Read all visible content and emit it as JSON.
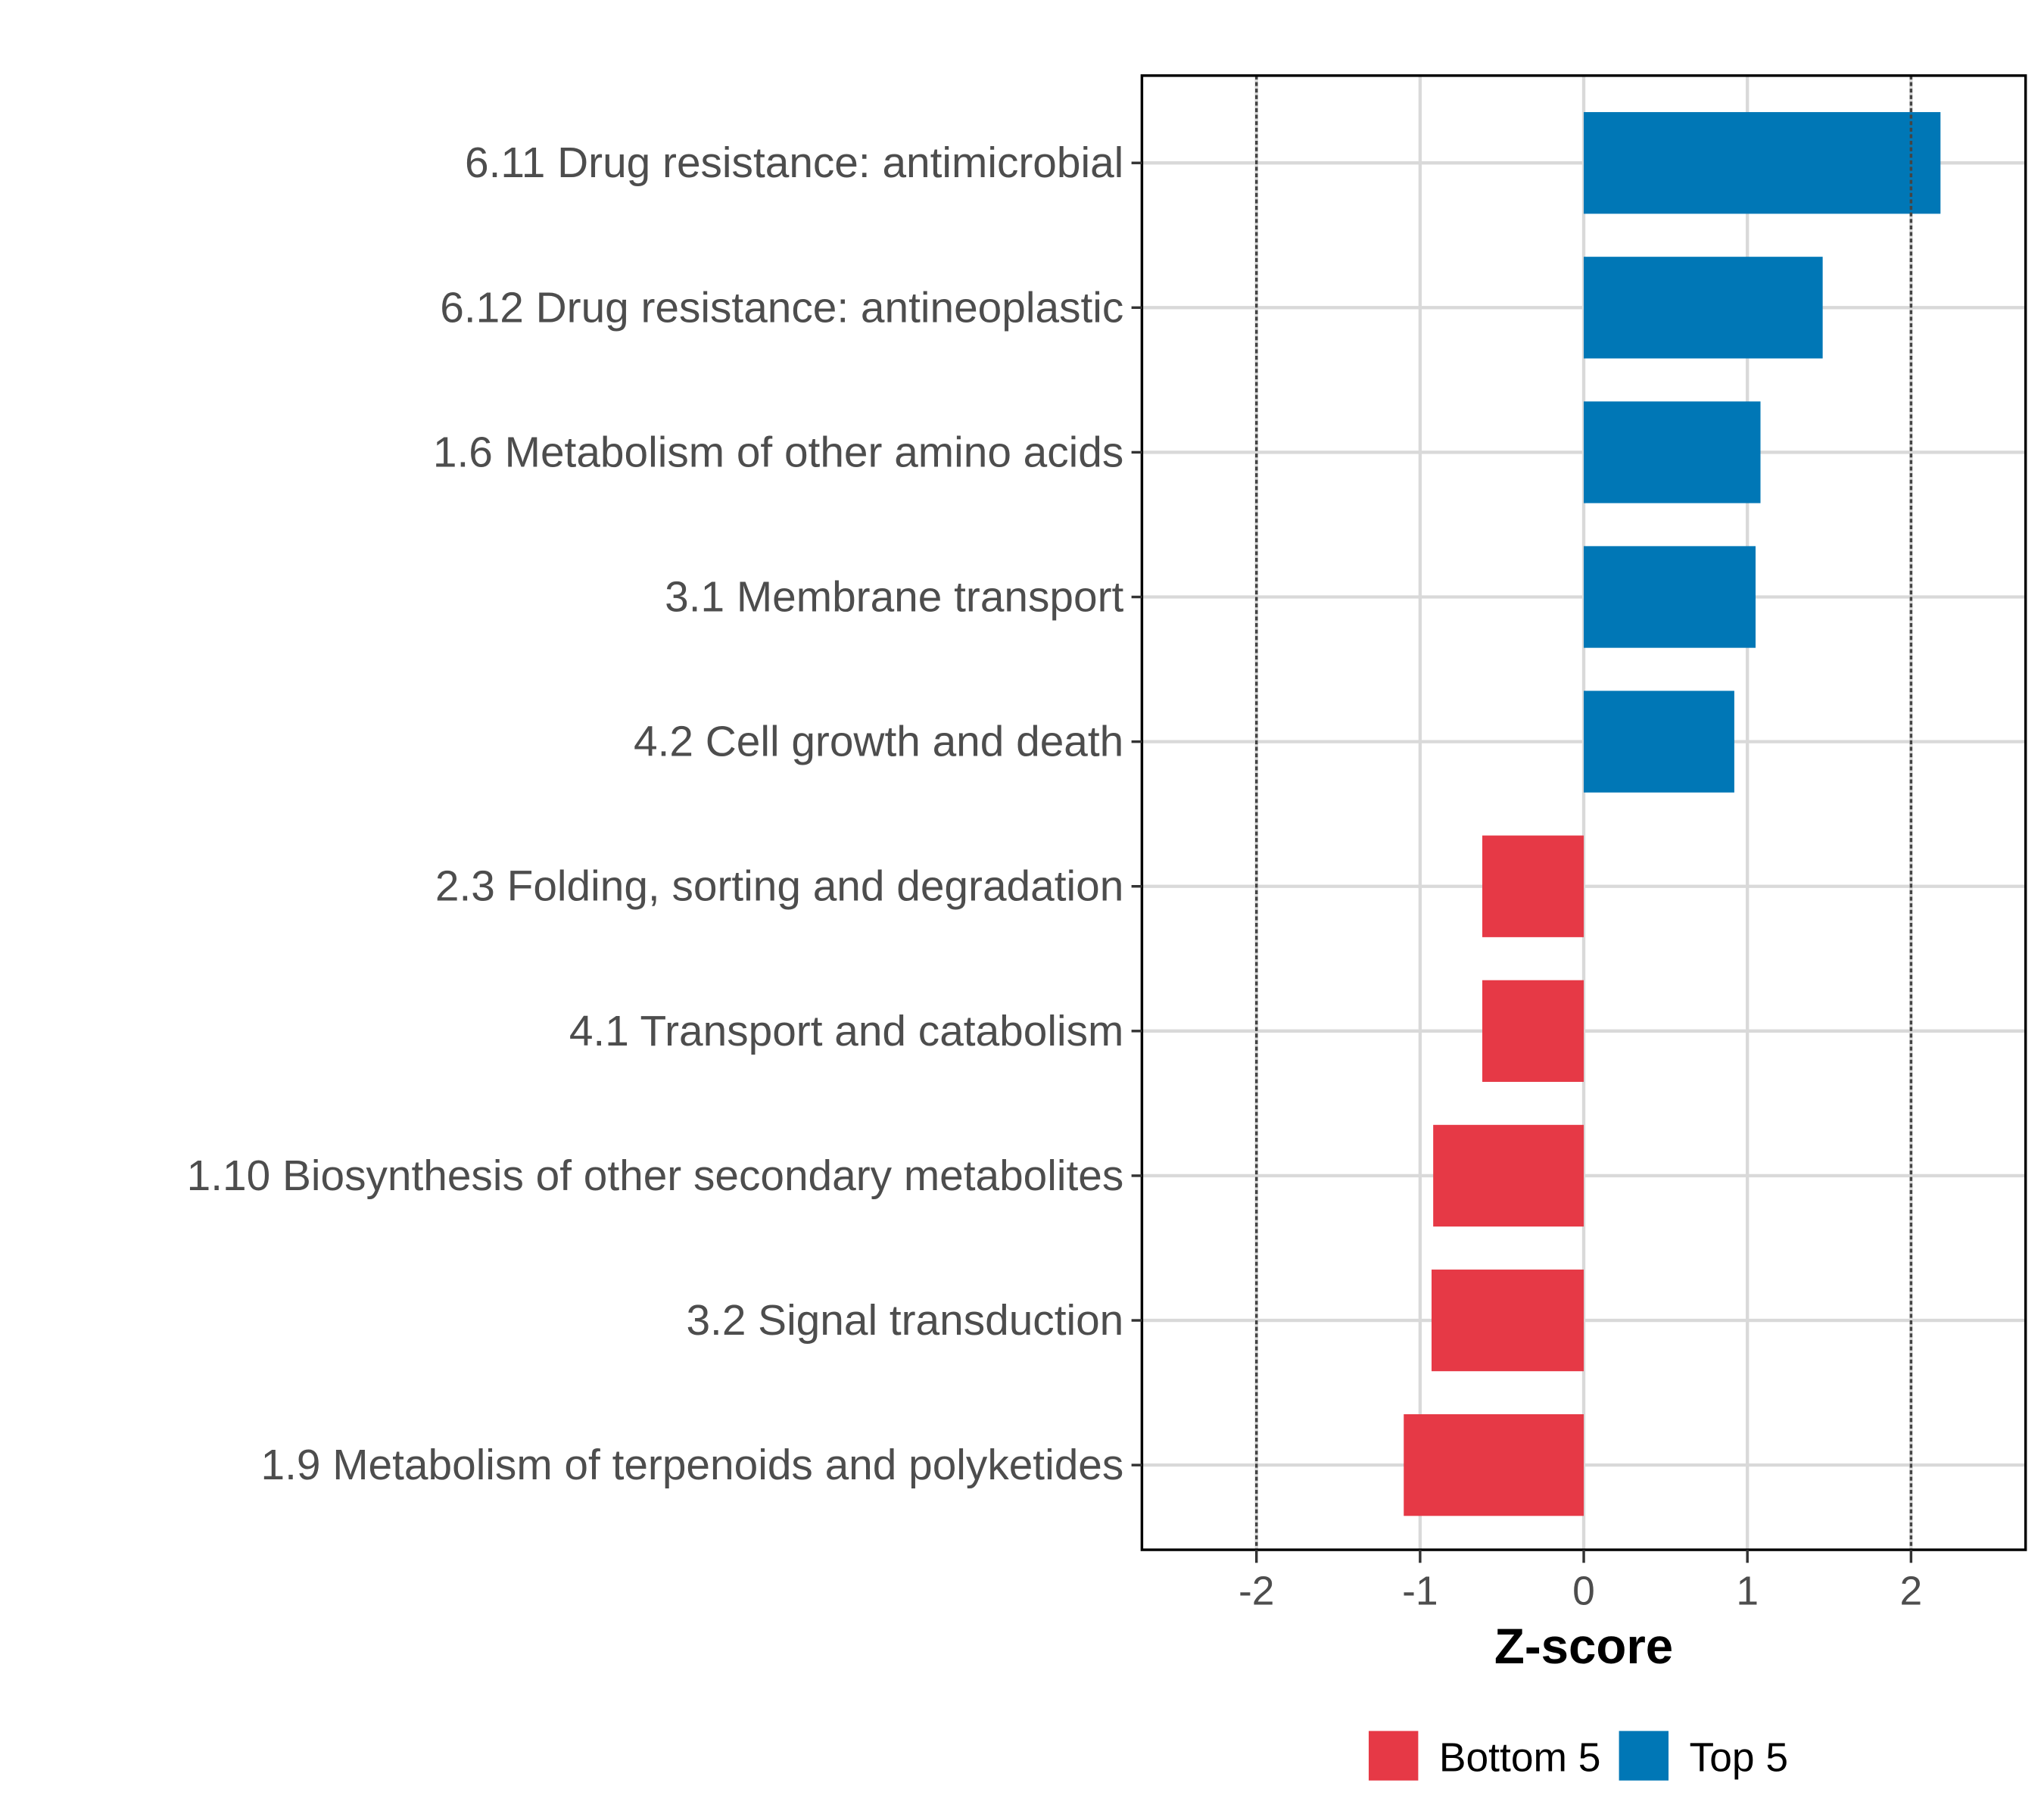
{
  "chart_data": {
    "type": "bar",
    "orientation": "horizontal",
    "title": "",
    "xlabel": "Z-score",
    "ylabel": "",
    "xlim": [
      -2.7,
      2.7
    ],
    "xticks": [
      -2,
      -1,
      0,
      1,
      2
    ],
    "xtick_labels": [
      "-2",
      "-1",
      "0",
      "1",
      "2"
    ],
    "reference_lines": [
      -2,
      2
    ],
    "grid": true,
    "categories": [
      "6.11 Drug resistance: antimicrobial",
      "6.12 Drug resistance: antineoplastic",
      "1.6 Metabolism of other amino acids",
      "3.1 Membrane transport",
      "4.2 Cell growth and death",
      "2.3 Folding, sorting and degradation",
      "4.1 Transport and catabolism",
      "1.10 Biosynthesis of other secondary metabolites",
      "3.2 Signal transduction",
      "1.9 Metabolism of terpenoids and polyketides"
    ],
    "values": [
      2.18,
      1.46,
      1.08,
      1.05,
      0.92,
      -0.62,
      -0.62,
      -0.92,
      -0.93,
      -1.1
    ],
    "groups": [
      "Top 5",
      "Top 5",
      "Top 5",
      "Top 5",
      "Top 5",
      "Bottom 5",
      "Bottom 5",
      "Bottom 5",
      "Bottom 5",
      "Bottom 5"
    ],
    "legend": {
      "placement": "bottom",
      "entries": [
        {
          "label": "Bottom 5",
          "color": "#E63946"
        },
        {
          "label": "Top 5",
          "color": "#0077B6"
        }
      ]
    }
  }
}
